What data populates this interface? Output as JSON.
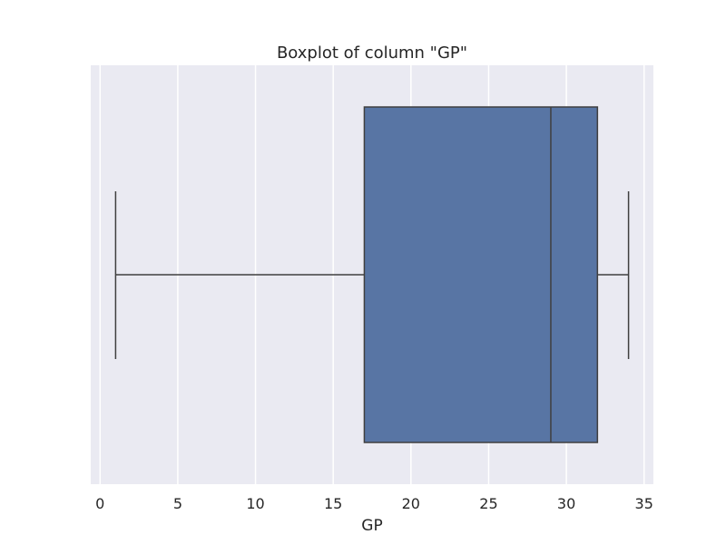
{
  "chart_data": {
    "type": "boxplot",
    "title": "Boxplot of column \"GP\"",
    "xlabel": "GP",
    "ylabel": "",
    "orientation": "horizontal",
    "xlim": [
      -0.6,
      35.6
    ],
    "xticks": [
      0,
      5,
      10,
      15,
      20,
      25,
      30,
      35
    ],
    "xtick_labels": [
      "0",
      "5",
      "10",
      "15",
      "20",
      "25",
      "30",
      "35"
    ],
    "grid": true,
    "box": {
      "whisker_low": 1,
      "q1": 17,
      "median": 29,
      "q3": 32,
      "whisker_high": 34
    },
    "colors": {
      "plot_background": "#eaeaf2",
      "grid": "#ffffff",
      "box_fill": "#5875a4",
      "line": "#3f3f3f"
    }
  }
}
